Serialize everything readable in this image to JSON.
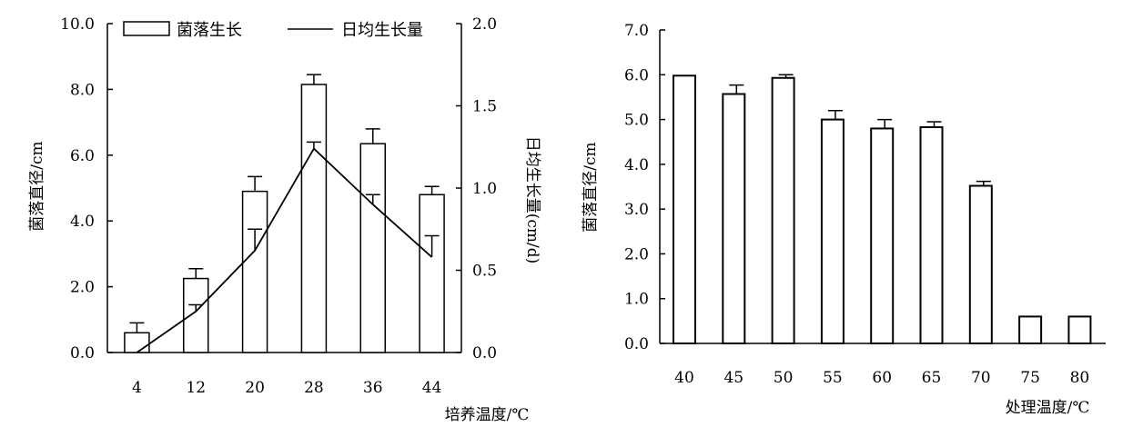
{
  "chart_data": [
    {
      "type": "bar",
      "title": "",
      "categories": [
        "4",
        "12",
        "20",
        "28",
        "36",
        "44"
      ],
      "xlabel": "培养温度/℃",
      "ylabel": "菌落直径/cm",
      "y2label": "日均生长量(cm/d)",
      "ylim": [
        0,
        10
      ],
      "y2lim": [
        0,
        2
      ],
      "yticks": [
        "0.0",
        "2.0",
        "4.0",
        "6.0",
        "8.0",
        "10.0"
      ],
      "y2ticks": [
        "0.0",
        "0.5",
        "1.0",
        "1.5",
        "2.0"
      ],
      "legend_position": "top",
      "series": [
        {
          "name": "菌落生长",
          "type": "bar",
          "axis": "left",
          "values": [
            0.6,
            2.25,
            4.9,
            8.15,
            6.35,
            4.8
          ],
          "errors": [
            0.3,
            0.3,
            0.45,
            0.3,
            0.45,
            0.25
          ]
        },
        {
          "name": "日均生长量",
          "type": "line",
          "axis": "right",
          "values": [
            0.0,
            0.25,
            0.62,
            1.24,
            0.9,
            0.58
          ],
          "errors": [
            0.0,
            0.04,
            0.13,
            0.04,
            0.06,
            0.13
          ]
        }
      ]
    },
    {
      "type": "bar",
      "title": "",
      "categories": [
        "40",
        "45",
        "50",
        "55",
        "60",
        "65",
        "70",
        "75",
        "80"
      ],
      "xlabel": "处理温度/℃",
      "ylabel": "菌落直径/cm",
      "ylim": [
        0,
        7
      ],
      "yticks": [
        "0.0",
        "1.0",
        "2.0",
        "3.0",
        "4.0",
        "5.0",
        "6.0",
        "7.0"
      ],
      "series": [
        {
          "type": "bar",
          "values": [
            5.98,
            5.57,
            5.93,
            5.0,
            4.8,
            4.83,
            3.52,
            0.6,
            0.6
          ],
          "errors": [
            0,
            0.2,
            0.07,
            0.2,
            0.2,
            0.12,
            0.1,
            0,
            0
          ]
        }
      ]
    }
  ]
}
